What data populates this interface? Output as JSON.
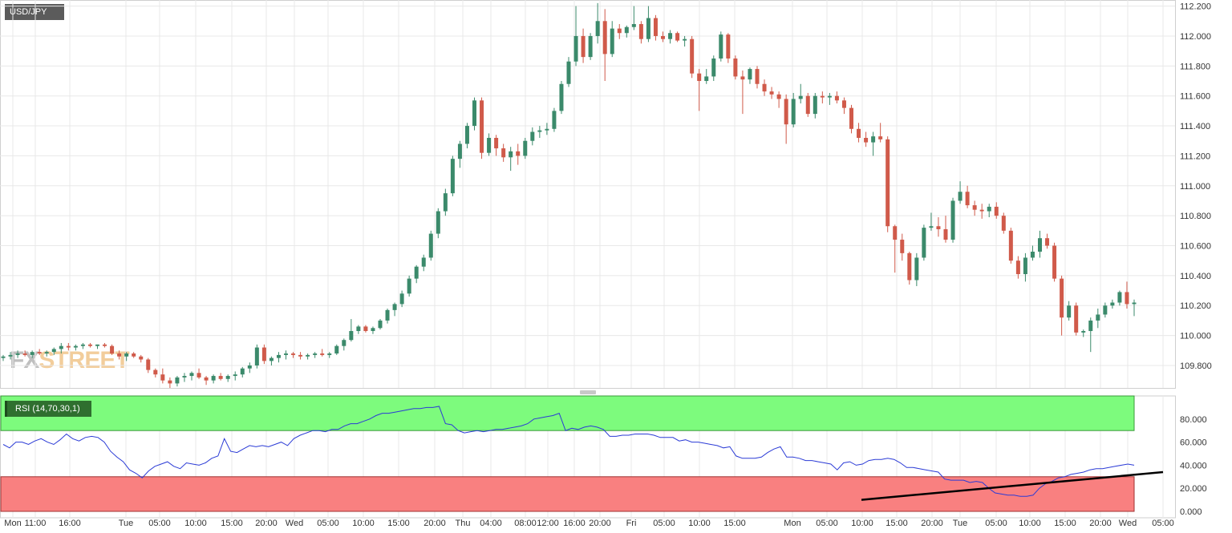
{
  "header": {
    "symbol": "USD/JPY"
  },
  "watermark": {
    "part1": "FX",
    "part2": "STREET"
  },
  "rsi": {
    "label": "RSI (14,70,30,1)",
    "overbought": 70,
    "oversold": 30
  },
  "colors": {
    "up": "#3b8a6b",
    "down": "#d05a4a",
    "rsi_line": "#2b3bd6",
    "overbought_fill": "#7dfb7d",
    "oversold_fill": "#f98080",
    "grid": "#e8e8e8",
    "trendline": "#000000"
  },
  "chart_data": [
    {
      "type": "candlestick",
      "title": "USD/JPY",
      "ylim": [
        109.65,
        112.23
      ],
      "y_ticks": [
        "112.200",
        "112.000",
        "111.800",
        "111.600",
        "111.400",
        "111.200",
        "111.000",
        "110.800",
        "110.600",
        "110.400",
        "110.200",
        "110.000",
        "109.800"
      ],
      "x_ticks": [
        "Mon",
        "11:00",
        "16:00",
        "Tue",
        "05:00",
        "10:00",
        "15:00",
        "20:00",
        "Wed",
        "05:00",
        "10:00",
        "15:00",
        "20:00",
        "Thu",
        "04:00",
        "08:00",
        "12:00",
        "16:00",
        "20:00",
        "Fri",
        "05:00",
        "10:00",
        "15:00",
        "Mon",
        "05:00",
        "10:00",
        "15:00",
        "20:00",
        "Tue",
        "05:00",
        "10:00",
        "15:00",
        "20:00",
        "Wed",
        "05:00"
      ],
      "ohlc": [
        [
          109.85,
          109.87,
          109.83,
          109.86
        ],
        [
          109.86,
          109.89,
          109.84,
          109.87
        ],
        [
          109.87,
          109.9,
          109.85,
          109.88
        ],
        [
          109.88,
          109.9,
          109.86,
          109.87
        ],
        [
          109.87,
          109.9,
          109.85,
          109.89
        ],
        [
          109.89,
          109.91,
          109.87,
          109.88
        ],
        [
          109.88,
          109.9,
          109.86,
          109.89
        ],
        [
          109.89,
          109.92,
          109.87,
          109.91
        ],
        [
          109.91,
          109.95,
          109.88,
          109.93
        ],
        [
          109.93,
          109.95,
          109.9,
          109.92
        ],
        [
          109.92,
          109.94,
          109.9,
          109.93
        ],
        [
          109.93,
          109.95,
          109.91,
          109.94
        ],
        [
          109.94,
          109.95,
          109.92,
          109.93
        ],
        [
          109.93,
          109.94,
          109.91,
          109.94
        ],
        [
          109.94,
          109.95,
          109.92,
          109.93
        ],
        [
          109.93,
          109.94,
          109.87,
          109.88
        ],
        [
          109.88,
          109.9,
          109.84,
          109.86
        ],
        [
          109.86,
          109.89,
          109.83,
          109.88
        ],
        [
          109.88,
          109.89,
          109.85,
          109.86
        ],
        [
          109.86,
          109.87,
          109.82,
          109.84
        ],
        [
          109.84,
          109.85,
          109.75,
          109.77
        ],
        [
          109.77,
          109.78,
          109.72,
          109.74
        ],
        [
          109.74,
          109.78,
          109.68,
          109.7
        ],
        [
          109.7,
          109.72,
          109.65,
          109.68
        ],
        [
          109.68,
          109.73,
          109.66,
          109.72
        ],
        [
          109.72,
          109.75,
          109.69,
          109.73
        ],
        [
          109.73,
          109.76,
          109.7,
          109.75
        ],
        [
          109.75,
          109.78,
          109.71,
          109.72
        ],
        [
          109.72,
          109.73,
          109.67,
          109.7
        ],
        [
          109.7,
          109.74,
          109.68,
          109.73
        ],
        [
          109.73,
          109.75,
          109.7,
          109.71
        ],
        [
          109.71,
          109.74,
          109.69,
          109.73
        ],
        [
          109.73,
          109.76,
          109.7,
          109.74
        ],
        [
          109.74,
          109.79,
          109.72,
          109.78
        ],
        [
          109.78,
          109.82,
          109.75,
          109.8
        ],
        [
          109.8,
          109.94,
          109.78,
          109.92
        ],
        [
          109.92,
          109.94,
          109.81,
          109.83
        ],
        [
          109.83,
          109.86,
          109.8,
          109.85
        ],
        [
          109.85,
          109.89,
          109.82,
          109.87
        ],
        [
          109.87,
          109.9,
          109.84,
          109.88
        ],
        [
          109.88,
          109.89,
          109.85,
          109.87
        ],
        [
          109.87,
          109.89,
          109.84,
          109.86
        ],
        [
          109.86,
          109.88,
          109.84,
          109.87
        ],
        [
          109.87,
          109.89,
          109.85,
          109.88
        ],
        [
          109.88,
          109.91,
          109.86,
          109.87
        ],
        [
          109.87,
          109.89,
          109.85,
          109.88
        ],
        [
          109.88,
          109.94,
          109.87,
          109.93
        ],
        [
          109.93,
          109.98,
          109.9,
          109.97
        ],
        [
          109.97,
          110.11,
          109.96,
          110.03
        ],
        [
          110.03,
          110.07,
          110.01,
          110.06
        ],
        [
          110.06,
          110.07,
          110.02,
          110.03
        ],
        [
          110.03,
          110.06,
          110.01,
          110.05
        ],
        [
          110.05,
          110.11,
          110.04,
          110.1
        ],
        [
          110.1,
          110.18,
          110.08,
          110.17
        ],
        [
          110.17,
          110.22,
          110.13,
          110.21
        ],
        [
          110.21,
          110.3,
          110.19,
          110.28
        ],
        [
          110.28,
          110.4,
          110.26,
          110.38
        ],
        [
          110.38,
          110.47,
          110.35,
          110.46
        ],
        [
          110.46,
          110.54,
          110.43,
          110.52
        ],
        [
          110.52,
          110.7,
          110.5,
          110.68
        ],
        [
          110.68,
          110.85,
          110.65,
          110.83
        ],
        [
          110.83,
          110.98,
          110.8,
          110.95
        ],
        [
          110.95,
          111.2,
          110.93,
          111.18
        ],
        [
          111.18,
          111.3,
          111.12,
          111.28
        ],
        [
          111.28,
          111.42,
          111.25,
          111.4
        ],
        [
          111.4,
          111.59,
          111.37,
          111.57
        ],
        [
          111.57,
          111.59,
          111.18,
          111.22
        ],
        [
          111.22,
          111.35,
          111.2,
          111.32
        ],
        [
          111.32,
          111.34,
          111.2,
          111.25
        ],
        [
          111.25,
          111.28,
          111.16,
          111.19
        ],
        [
          111.19,
          111.26,
          111.1,
          111.23
        ],
        [
          111.23,
          111.28,
          111.14,
          111.2
        ],
        [
          111.2,
          111.32,
          111.18,
          111.3
        ],
        [
          111.3,
          111.39,
          111.27,
          111.36
        ],
        [
          111.36,
          111.4,
          111.32,
          111.37
        ],
        [
          111.37,
          111.42,
          111.34,
          111.38
        ],
        [
          111.38,
          111.52,
          111.36,
          111.5
        ],
        [
          111.5,
          111.7,
          111.48,
          111.68
        ],
        [
          111.68,
          111.86,
          111.66,
          111.83
        ],
        [
          111.83,
          112.2,
          111.8,
          112.0
        ],
        [
          112.0,
          112.05,
          111.82,
          111.86
        ],
        [
          111.86,
          112.02,
          111.84,
          112.0
        ],
        [
          112.0,
          112.22,
          111.95,
          112.1
        ],
        [
          112.1,
          112.18,
          111.7,
          111.88
        ],
        [
          111.88,
          112.1,
          111.86,
          112.05
        ],
        [
          112.05,
          112.08,
          111.98,
          112.02
        ],
        [
          112.02,
          112.07,
          111.99,
          112.06
        ],
        [
          112.06,
          112.2,
          112.04,
          112.08
        ],
        [
          112.08,
          112.1,
          111.95,
          111.98
        ],
        [
          111.98,
          112.2,
          111.96,
          112.12
        ],
        [
          112.12,
          112.14,
          111.97,
          112.0
        ],
        [
          112.0,
          112.03,
          111.96,
          111.98
        ],
        [
          111.98,
          112.04,
          111.95,
          112.02
        ],
        [
          112.02,
          112.03,
          111.96,
          111.97
        ],
        [
          111.97,
          112.0,
          111.93,
          111.98
        ],
        [
          111.98,
          112.0,
          111.72,
          111.75
        ],
        [
          111.75,
          111.78,
          111.5,
          111.7
        ],
        [
          111.7,
          111.78,
          111.68,
          111.73
        ],
        [
          111.73,
          111.87,
          111.7,
          111.85
        ],
        [
          111.85,
          112.03,
          111.83,
          112.01
        ],
        [
          112.01,
          112.02,
          111.82,
          111.85
        ],
        [
          111.85,
          111.87,
          111.71,
          111.73
        ],
        [
          111.73,
          111.77,
          111.48,
          111.71
        ],
        [
          111.71,
          111.79,
          111.68,
          111.78
        ],
        [
          111.78,
          111.8,
          111.65,
          111.68
        ],
        [
          111.68,
          111.71,
          111.6,
          111.63
        ],
        [
          111.63,
          111.66,
          111.58,
          111.61
        ],
        [
          111.61,
          111.63,
          111.52,
          111.58
        ],
        [
          111.58,
          111.61,
          111.28,
          111.41
        ],
        [
          111.41,
          111.62,
          111.39,
          111.58
        ],
        [
          111.58,
          111.68,
          111.55,
          111.6
        ],
        [
          111.6,
          111.62,
          111.46,
          111.48
        ],
        [
          111.48,
          111.62,
          111.45,
          111.6
        ],
        [
          111.6,
          111.63,
          111.55,
          111.59
        ],
        [
          111.59,
          111.62,
          111.54,
          111.6
        ],
        [
          111.6,
          111.63,
          111.55,
          111.57
        ],
        [
          111.57,
          111.59,
          111.48,
          111.52
        ],
        [
          111.52,
          111.54,
          111.35,
          111.38
        ],
        [
          111.38,
          111.42,
          111.29,
          111.32
        ],
        [
          111.32,
          111.36,
          111.26,
          111.29
        ],
        [
          111.29,
          111.36,
          111.2,
          111.33
        ],
        [
          111.33,
          111.42,
          111.29,
          111.31
        ],
        [
          111.31,
          111.33,
          110.69,
          110.73
        ],
        [
          110.73,
          110.74,
          110.42,
          110.64
        ],
        [
          110.64,
          110.68,
          110.5,
          110.55
        ],
        [
          110.55,
          110.56,
          110.34,
          110.37
        ],
        [
          110.37,
          110.55,
          110.33,
          110.52
        ],
        [
          110.52,
          110.74,
          110.5,
          110.72
        ],
        [
          110.72,
          110.82,
          110.7,
          110.73
        ],
        [
          110.73,
          110.79,
          110.66,
          110.71
        ],
        [
          110.71,
          110.8,
          110.62,
          110.64
        ],
        [
          110.64,
          110.92,
          110.62,
          110.9
        ],
        [
          110.9,
          111.03,
          110.88,
          110.96
        ],
        [
          110.96,
          111.0,
          110.85,
          110.87
        ],
        [
          110.87,
          110.9,
          110.8,
          110.84
        ],
        [
          110.84,
          110.88,
          110.78,
          110.83
        ],
        [
          110.83,
          110.88,
          110.79,
          110.86
        ],
        [
          110.86,
          110.89,
          110.78,
          110.8
        ],
        [
          110.8,
          110.82,
          110.68,
          110.7
        ],
        [
          110.7,
          110.72,
          110.48,
          110.5
        ],
        [
          110.5,
          110.53,
          110.38,
          110.41
        ],
        [
          110.41,
          110.55,
          110.36,
          110.52
        ],
        [
          110.52,
          110.6,
          110.5,
          110.56
        ],
        [
          110.56,
          110.7,
          110.52,
          110.65
        ],
        [
          110.65,
          110.68,
          110.58,
          110.6
        ],
        [
          110.6,
          110.62,
          110.36,
          110.38
        ],
        [
          110.38,
          110.4,
          110.0,
          110.12
        ],
        [
          110.12,
          110.23,
          110.1,
          110.2
        ],
        [
          110.2,
          110.22,
          110.0,
          110.02
        ],
        [
          110.02,
          110.04,
          109.99,
          110.03
        ],
        [
          110.03,
          110.12,
          109.89,
          110.1
        ],
        [
          110.1,
          110.18,
          110.05,
          110.14
        ],
        [
          110.14,
          110.22,
          110.12,
          110.2
        ],
        [
          110.2,
          110.24,
          110.18,
          110.22
        ],
        [
          110.22,
          110.3,
          110.2,
          110.29
        ],
        [
          110.29,
          110.36,
          110.18,
          110.21
        ],
        [
          110.21,
          110.24,
          110.13,
          110.22
        ]
      ]
    },
    {
      "type": "line",
      "title": "RSI (14,70,30,1)",
      "ylim": [
        0,
        100
      ],
      "y_ticks": [
        "80.000",
        "60.000",
        "40.000",
        "20.000",
        "0.000"
      ],
      "values": [
        58,
        55,
        60,
        60,
        58,
        61,
        63,
        60,
        58,
        62,
        67,
        63,
        61,
        64,
        65,
        64,
        60,
        52,
        47,
        43,
        36,
        33,
        29,
        35,
        39,
        41,
        43,
        39,
        37,
        42,
        41,
        40,
        42,
        46,
        48,
        63,
        52,
        51,
        54,
        57,
        56,
        57,
        56,
        58,
        60,
        57,
        63,
        66,
        68,
        70,
        70,
        69,
        71,
        71,
        74,
        76,
        76,
        78,
        80,
        83,
        85,
        85,
        86,
        87,
        88,
        89,
        89,
        90,
        90,
        91,
        76,
        75,
        70,
        68,
        69,
        70,
        69,
        70,
        71,
        71,
        72,
        73,
        74,
        76,
        80,
        81,
        82,
        83,
        85,
        70,
        72,
        71,
        73,
        74,
        73,
        71,
        65,
        65,
        66,
        66,
        67,
        67,
        67,
        66,
        64,
        64,
        64,
        61,
        62,
        60,
        60,
        59,
        58,
        57,
        55,
        56,
        48,
        46,
        46,
        46,
        47,
        51,
        54,
        56,
        47,
        47,
        46,
        44,
        44,
        43,
        42,
        41,
        36,
        42,
        43,
        40,
        41,
        44,
        45,
        45,
        46,
        45,
        42,
        38,
        38,
        37,
        36,
        35,
        34,
        28,
        27,
        27,
        27,
        25,
        26,
        25,
        20,
        16,
        15,
        14,
        14,
        13,
        13,
        14,
        20,
        24,
        26,
        29,
        30,
        32,
        33,
        34,
        36,
        37,
        37,
        38,
        39,
        40,
        41,
        40
      ]
    }
  ]
}
